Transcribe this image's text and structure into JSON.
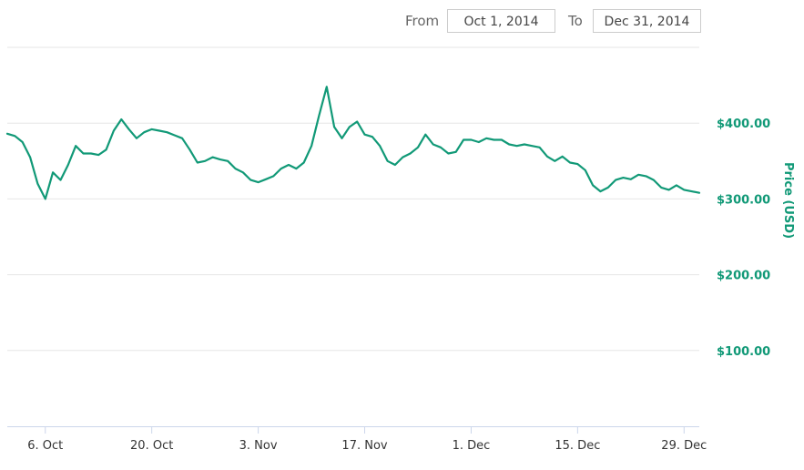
{
  "range_selector": {
    "from_label": "From",
    "from_value": "Oct 1, 2014",
    "to_label": "To",
    "to_value": "Dec 31, 2014"
  },
  "colors": {
    "series": "#119977",
    "axis_labels": "#119977",
    "grid": "#e6e6e6",
    "x_labels": "#333333"
  },
  "chart_data": {
    "type": "line",
    "title": "",
    "xlabel": "",
    "ylabel": "Price (USD)",
    "grid": true,
    "ylim": [
      0,
      500
    ],
    "xlim": [
      "2014-10-01",
      "2014-12-31"
    ],
    "y_ticks": [
      {
        "value": 100,
        "label": "$100.00"
      },
      {
        "value": 200,
        "label": "$200.00"
      },
      {
        "value": 300,
        "label": "$300.00"
      },
      {
        "value": 400,
        "label": "$400.00"
      }
    ],
    "x_ticks": [
      {
        "date": "2014-10-06",
        "label": "6. Oct"
      },
      {
        "date": "2014-10-20",
        "label": "20. Oct"
      },
      {
        "date": "2014-11-03",
        "label": "3. Nov"
      },
      {
        "date": "2014-11-17",
        "label": "17. Nov"
      },
      {
        "date": "2014-12-01",
        "label": "1. Dec"
      },
      {
        "date": "2014-12-15",
        "label": "15. Dec"
      },
      {
        "date": "2014-12-29",
        "label": "29. Dec"
      }
    ],
    "series": [
      {
        "name": "",
        "x": [
          "2014-10-01",
          "2014-10-02",
          "2014-10-03",
          "2014-10-04",
          "2014-10-05",
          "2014-10-06",
          "2014-10-07",
          "2014-10-08",
          "2014-10-09",
          "2014-10-10",
          "2014-10-11",
          "2014-10-12",
          "2014-10-13",
          "2014-10-14",
          "2014-10-15",
          "2014-10-16",
          "2014-10-17",
          "2014-10-18",
          "2014-10-19",
          "2014-10-20",
          "2014-10-21",
          "2014-10-22",
          "2014-10-23",
          "2014-10-24",
          "2014-10-25",
          "2014-10-26",
          "2014-10-27",
          "2014-10-28",
          "2014-10-29",
          "2014-10-30",
          "2014-10-31",
          "2014-11-01",
          "2014-11-02",
          "2014-11-03",
          "2014-11-04",
          "2014-11-05",
          "2014-11-06",
          "2014-11-07",
          "2014-11-08",
          "2014-11-09",
          "2014-11-10",
          "2014-11-11",
          "2014-11-12",
          "2014-11-13",
          "2014-11-14",
          "2014-11-15",
          "2014-11-16",
          "2014-11-17",
          "2014-11-18",
          "2014-11-19",
          "2014-11-20",
          "2014-11-21",
          "2014-11-22",
          "2014-11-23",
          "2014-11-24",
          "2014-11-25",
          "2014-11-26",
          "2014-11-27",
          "2014-11-28",
          "2014-11-29",
          "2014-11-30",
          "2014-12-01",
          "2014-12-02",
          "2014-12-03",
          "2014-12-04",
          "2014-12-05",
          "2014-12-06",
          "2014-12-07",
          "2014-12-08",
          "2014-12-09",
          "2014-12-10",
          "2014-12-11",
          "2014-12-12",
          "2014-12-13",
          "2014-12-14",
          "2014-12-15",
          "2014-12-16",
          "2014-12-17",
          "2014-12-18",
          "2014-12-19",
          "2014-12-20",
          "2014-12-21",
          "2014-12-22",
          "2014-12-23",
          "2014-12-24",
          "2014-12-25",
          "2014-12-26",
          "2014-12-27",
          "2014-12-28",
          "2014-12-29",
          "2014-12-30",
          "2014-12-31"
        ],
        "values": [
          386,
          383,
          375,
          355,
          320,
          300,
          335,
          325,
          345,
          370,
          360,
          360,
          358,
          365,
          390,
          405,
          392,
          380,
          388,
          392,
          390,
          388,
          384,
          380,
          365,
          348,
          350,
          355,
          352,
          350,
          340,
          335,
          325,
          322,
          326,
          330,
          340,
          345,
          340,
          348,
          370,
          410,
          448,
          395,
          380,
          395,
          402,
          385,
          382,
          370,
          350,
          345,
          355,
          360,
          368,
          385,
          372,
          368,
          360,
          362,
          378,
          378,
          375,
          380,
          378,
          378,
          372,
          370,
          372,
          370,
          368,
          356,
          350,
          356,
          348,
          346,
          338,
          318,
          310,
          315,
          325,
          328,
          326,
          332,
          330,
          325,
          315,
          312,
          318,
          312,
          310,
          308
        ]
      }
    ]
  }
}
